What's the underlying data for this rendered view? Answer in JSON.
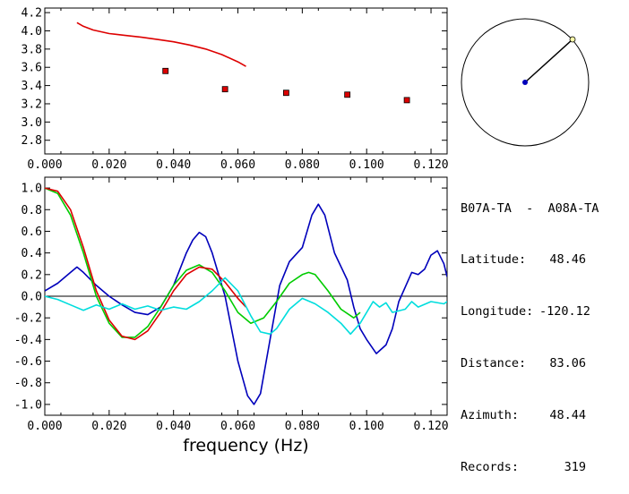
{
  "station_pair": "B07A-TA  -  A08A-TA",
  "info": [
    {
      "label": "Latitude:",
      "value": "48.46"
    },
    {
      "label": "Longitude:",
      "value": "-120.12"
    },
    {
      "label": "Distance:",
      "value": "83.06"
    },
    {
      "label": "Azimuth:",
      "value": "48.44"
    },
    {
      "label": "Records:",
      "value": "319"
    }
  ],
  "colors": {
    "red": "#dd0000",
    "green": "#00cc00",
    "blue": "#0000bb",
    "cyan": "#00dddd",
    "black": "#000000"
  },
  "chart_data": [
    {
      "type": "scatter",
      "xlim": [
        0.0,
        0.125
      ],
      "ylim": [
        2.65,
        4.25
      ],
      "x_ticks": [
        "0.000",
        "0.020",
        "0.040",
        "0.060",
        "0.080",
        "0.100",
        "0.120"
      ],
      "y_ticks": [
        "2.8",
        "3.0",
        "3.2",
        "3.4",
        "3.6",
        "3.8",
        "4.0",
        "4.2"
      ],
      "series": [
        {
          "type": "line",
          "color": "#dd0000",
          "x": [
            0.01,
            0.012,
            0.015,
            0.02,
            0.025,
            0.03,
            0.035,
            0.04,
            0.045,
            0.05,
            0.055,
            0.06,
            0.0625
          ],
          "y": [
            4.09,
            4.05,
            4.01,
            3.97,
            3.95,
            3.93,
            3.905,
            3.88,
            3.845,
            3.8,
            3.74,
            3.66,
            3.61
          ]
        },
        {
          "type": "points",
          "color": "#dd0000",
          "x": [
            0.0375,
            0.056,
            0.075,
            0.094,
            0.1125
          ],
          "y": [
            3.56,
            3.36,
            3.32,
            3.3,
            3.24
          ]
        }
      ]
    },
    {
      "type": "line",
      "xlim": [
        0.0,
        0.125
      ],
      "ylim": [
        -1.1,
        1.1
      ],
      "xlabel": "frequency  (Hz)",
      "x_ticks": [
        "0.000",
        "0.020",
        "0.040",
        "0.060",
        "0.080",
        "0.100",
        "0.120"
      ],
      "y_ticks": [
        "1.0",
        "0.8",
        "0.6",
        "0.4",
        "0.2",
        "0.0",
        "-0.2",
        "-0.4",
        "-0.6",
        "-0.8",
        "-1.0"
      ],
      "zero_line": true,
      "series": [
        {
          "color": "#0000bb",
          "x": [
            0,
            0.004,
            0.008,
            0.01,
            0.012,
            0.016,
            0.02,
            0.024,
            0.028,
            0.032,
            0.036,
            0.04,
            0.044,
            0.046,
            0.048,
            0.05,
            0.052,
            0.056,
            0.06,
            0.063,
            0.065,
            0.067,
            0.07,
            0.073,
            0.076,
            0.08,
            0.083,
            0.085,
            0.087,
            0.09,
            0.094,
            0.096,
            0.098,
            0.1,
            0.103,
            0.106,
            0.108,
            0.11,
            0.114,
            0.116,
            0.118,
            0.12,
            0.122,
            0.124,
            0.125
          ],
          "y": [
            0.05,
            0.12,
            0.22,
            0.27,
            0.22,
            0.1,
            0.0,
            -0.08,
            -0.15,
            -0.17,
            -0.1,
            0.1,
            0.4,
            0.52,
            0.59,
            0.55,
            0.4,
            0.0,
            -0.6,
            -0.92,
            -1.0,
            -0.9,
            -0.4,
            0.1,
            0.32,
            0.45,
            0.75,
            0.85,
            0.75,
            0.4,
            0.15,
            -0.1,
            -0.3,
            -0.4,
            -0.53,
            -0.45,
            -0.3,
            -0.05,
            0.22,
            0.2,
            0.25,
            0.38,
            0.42,
            0.3,
            0.18
          ]
        },
        {
          "color": "#00cc00",
          "x": [
            0,
            0.004,
            0.008,
            0.012,
            0.016,
            0.02,
            0.024,
            0.028,
            0.032,
            0.036,
            0.04,
            0.044,
            0.048,
            0.052,
            0.056,
            0.06,
            0.064,
            0.068,
            0.072,
            0.076,
            0.08,
            0.082,
            0.084,
            0.088,
            0.092,
            0.096,
            0.098
          ],
          "y": [
            1.0,
            0.95,
            0.75,
            0.4,
            0.0,
            -0.25,
            -0.38,
            -0.38,
            -0.28,
            -0.1,
            0.1,
            0.24,
            0.29,
            0.22,
            0.05,
            -0.15,
            -0.25,
            -0.2,
            -0.05,
            0.12,
            0.2,
            0.22,
            0.2,
            0.05,
            -0.12,
            -0.2,
            -0.15
          ]
        },
        {
          "color": "#dd0000",
          "x": [
            0,
            0.004,
            0.008,
            0.012,
            0.016,
            0.02,
            0.024,
            0.028,
            0.032,
            0.036,
            0.04,
            0.044,
            0.048,
            0.052,
            0.056,
            0.06,
            0.0625
          ],
          "y": [
            1.0,
            0.97,
            0.8,
            0.45,
            0.05,
            -0.22,
            -0.37,
            -0.4,
            -0.32,
            -0.15,
            0.05,
            0.2,
            0.27,
            0.25,
            0.13,
            -0.02,
            -0.1
          ]
        },
        {
          "color": "#00dddd",
          "x": [
            0,
            0.004,
            0.008,
            0.012,
            0.016,
            0.02,
            0.024,
            0.028,
            0.032,
            0.036,
            0.04,
            0.044,
            0.048,
            0.052,
            0.056,
            0.06,
            0.064,
            0.067,
            0.07,
            0.072,
            0.076,
            0.08,
            0.084,
            0.088,
            0.092,
            0.095,
            0.098,
            0.102,
            0.104,
            0.106,
            0.108,
            0.112,
            0.114,
            0.116,
            0.12,
            0.124,
            0.125
          ],
          "y": [
            0.0,
            -0.03,
            -0.08,
            -0.13,
            -0.08,
            -0.12,
            -0.07,
            -0.12,
            -0.09,
            -0.13,
            -0.1,
            -0.12,
            -0.05,
            0.05,
            0.17,
            0.05,
            -0.18,
            -0.33,
            -0.35,
            -0.3,
            -0.12,
            -0.02,
            -0.07,
            -0.15,
            -0.25,
            -0.35,
            -0.25,
            -0.05,
            -0.1,
            -0.06,
            -0.15,
            -0.12,
            -0.05,
            -0.1,
            -0.05,
            -0.07,
            -0.05
          ]
        }
      ]
    }
  ]
}
